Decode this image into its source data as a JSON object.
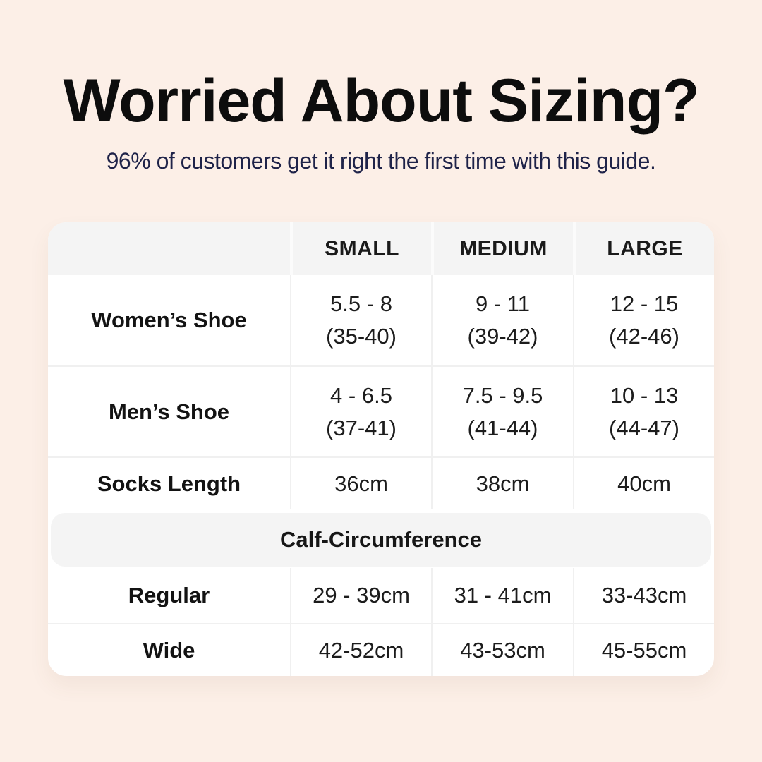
{
  "page": {
    "title": "Worried About Sizing?",
    "subtitle": "96% of customers get it right the first time with this guide."
  },
  "colors": {
    "background": "#fcefe7",
    "card": "#ffffff",
    "header_band": "#f4f4f4",
    "divider": "#f0f0f0",
    "title_text": "#0d0d0d",
    "subtitle_text": "#1f2349",
    "table_text": "#1c1c1c"
  },
  "table": {
    "headers": {
      "small": "SMALL",
      "medium": "MEDIUM",
      "large": "LARGE"
    },
    "shoe_rows": [
      {
        "label": "Women’s Shoe",
        "small": [
          "5.5 - 8",
          "(35-40)"
        ],
        "medium": [
          "9 - 11",
          "(39-42)"
        ],
        "large": [
          "12 - 15",
          "(42-46)"
        ]
      },
      {
        "label": "Men’s Shoe",
        "small": [
          "4 - 6.5",
          "(37-41)"
        ],
        "medium": [
          "7.5 - 9.5",
          "(41-44)"
        ],
        "large": [
          "10 - 13",
          "(44-47)"
        ]
      }
    ],
    "socks_row": {
      "label": "Socks Length",
      "small": "36cm",
      "medium": "38cm",
      "large": "40cm"
    },
    "section_header": "Calf-Circumference",
    "calf_rows": [
      {
        "label": "Regular",
        "small": "29 - 39cm",
        "medium": "31 - 41cm",
        "large": "33-43cm"
      },
      {
        "label": "Wide",
        "small": "42-52cm",
        "medium": "43-53cm",
        "large": "45-55cm"
      }
    ]
  },
  "chart_data": {
    "type": "table",
    "title": "Worried About Sizing?",
    "subtitle": "96% of customers get it right the first time with this guide.",
    "columns": [
      "",
      "SMALL",
      "MEDIUM",
      "LARGE"
    ],
    "rows": [
      [
        "Women’s Shoe",
        "5.5 - 8 (35-40)",
        "9 - 11 (39-42)",
        "12 - 15 (42-46)"
      ],
      [
        "Men’s Shoe",
        "4 - 6.5 (37-41)",
        "7.5 - 9.5 (41-44)",
        "10 - 13 (44-47)"
      ],
      [
        "Socks Length",
        "36cm",
        "38cm",
        "40cm"
      ],
      [
        "Calf-Circumference",
        "",
        "",
        ""
      ],
      [
        "Regular",
        "29 - 39cm",
        "31 - 41cm",
        "33-43cm"
      ],
      [
        "Wide",
        "42-52cm",
        "43-53cm",
        "45-55cm"
      ]
    ]
  }
}
